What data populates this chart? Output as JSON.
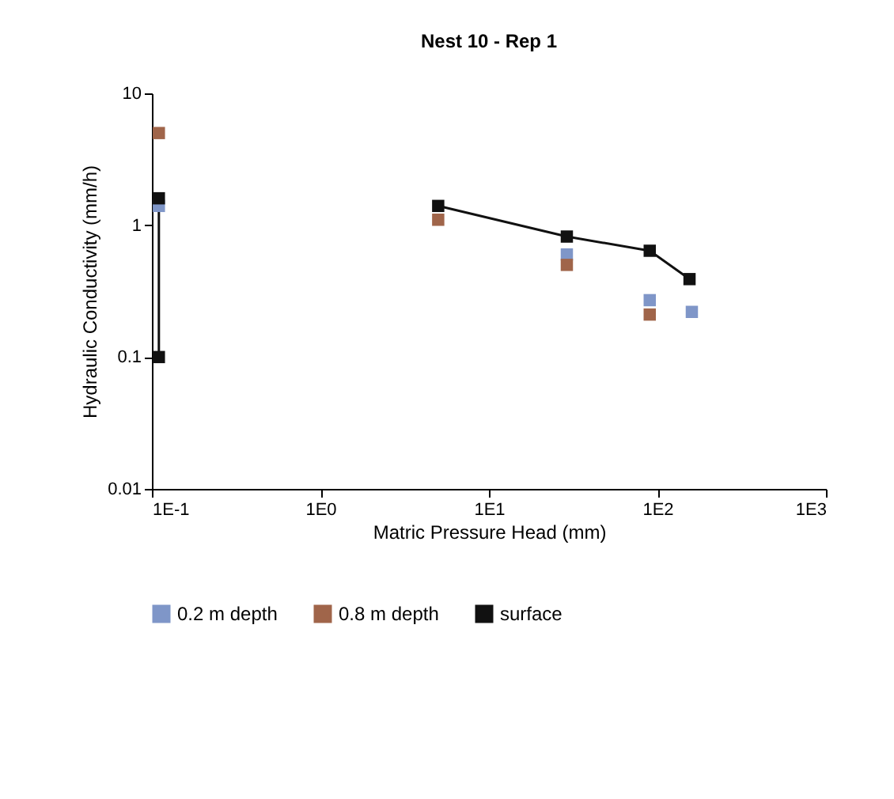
{
  "chart_data": {
    "type": "scatter",
    "title": "Nest 10 - Rep 1",
    "xlabel": "Matric Pressure Head (mm)",
    "ylabel": "Hydraulic Conductivity (mm/h)",
    "log": "xy",
    "xlim": [
      0.1,
      1000
    ],
    "ylim": [
      0.01,
      10
    ],
    "xticks": [
      {
        "value": 0.1,
        "label": "1E-1"
      },
      {
        "value": 1,
        "label": "1E0"
      },
      {
        "value": 10,
        "label": "1E1"
      },
      {
        "value": 100,
        "label": "1E2"
      },
      {
        "value": 1000,
        "label": "1E3"
      }
    ],
    "yticks": [
      0.01,
      0.1,
      1,
      10
    ],
    "grid": false,
    "legend": "bottom",
    "marker": "square",
    "series": [
      {
        "name": "0.2 m depth",
        "color": "#7f96c8",
        "x": [
          0.11,
          5,
          29,
          90,
          160
        ],
        "values": [
          1.4,
          null,
          0.6,
          0.27,
          0.22
        ]
      },
      {
        "name": "0.8 m depth",
        "color": "#a0654a",
        "x": [
          0.11,
          5,
          29,
          90
        ],
        "values": [
          5,
          1.1,
          0.5,
          0.21
        ]
      },
      {
        "name": "surface",
        "type": "line",
        "color": "#111111",
        "x": [
          0.11,
          0.11,
          1,
          5,
          29,
          90,
          155
        ],
        "values": [
          0.1,
          1.6,
          null,
          1.4,
          0.82,
          0.64,
          0.39
        ]
      }
    ]
  }
}
